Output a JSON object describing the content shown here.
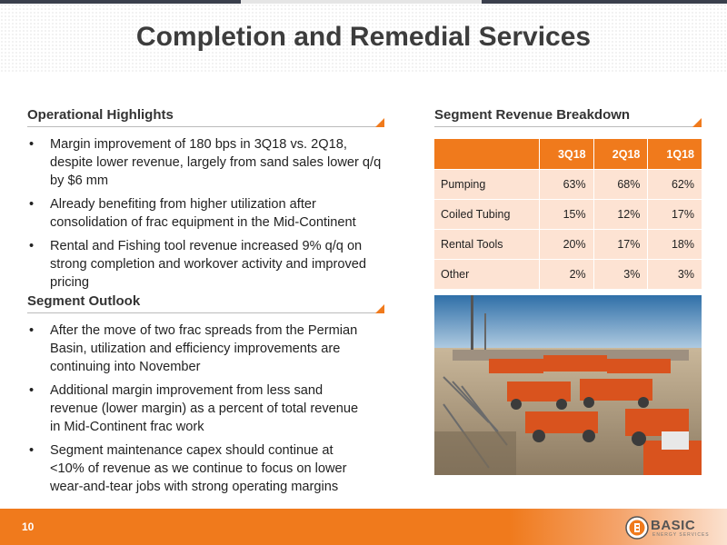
{
  "title": "Completion and Remedial Services",
  "operational": {
    "heading": "Operational Highlights",
    "bullets": [
      "Margin improvement of 180 bps in 3Q18 vs. 2Q18, despite lower revenue, largely from sand sales lower q/q by $6 mm",
      "Already benefiting from higher utilization after consolidation of frac equipment in the Mid-Continent",
      "Rental and Fishing tool revenue increased 9% q/q on strong completion and workover activity and improved pricing"
    ]
  },
  "outlook": {
    "heading": "Segment Outlook",
    "bullets": [
      "After the move of two frac spreads from the Permian Basin, utilization and efficiency improvements are continuing into November",
      "Additional margin improvement from less sand revenue (lower margin) as a percent of total revenue in Mid-Continent frac work",
      "Segment maintenance capex should continue at <10% of revenue as we continue to focus on lower wear-and-tear jobs with strong operating margins"
    ]
  },
  "revenue": {
    "heading": "Segment Revenue Breakdown",
    "columns": [
      "3Q18",
      "2Q18",
      "1Q18"
    ],
    "rows": [
      {
        "label": "Pumping",
        "values": [
          "63%",
          "68%",
          "62%"
        ]
      },
      {
        "label": "Coiled Tubing",
        "values": [
          "15%",
          "12%",
          "17%"
        ]
      },
      {
        "label": "Rental Tools",
        "values": [
          "20%",
          "17%",
          "18%"
        ]
      },
      {
        "label": "Other",
        "values": [
          "2%",
          "3%",
          "3%"
        ]
      }
    ]
  },
  "footer": {
    "page_number": "10",
    "logo_text": "BASIC",
    "logo_tagline": "ENERGY SERVICES"
  },
  "colors": {
    "accent": "#f07a1c",
    "table_cell": "#fde3d3",
    "footer": "#f07a1c"
  }
}
